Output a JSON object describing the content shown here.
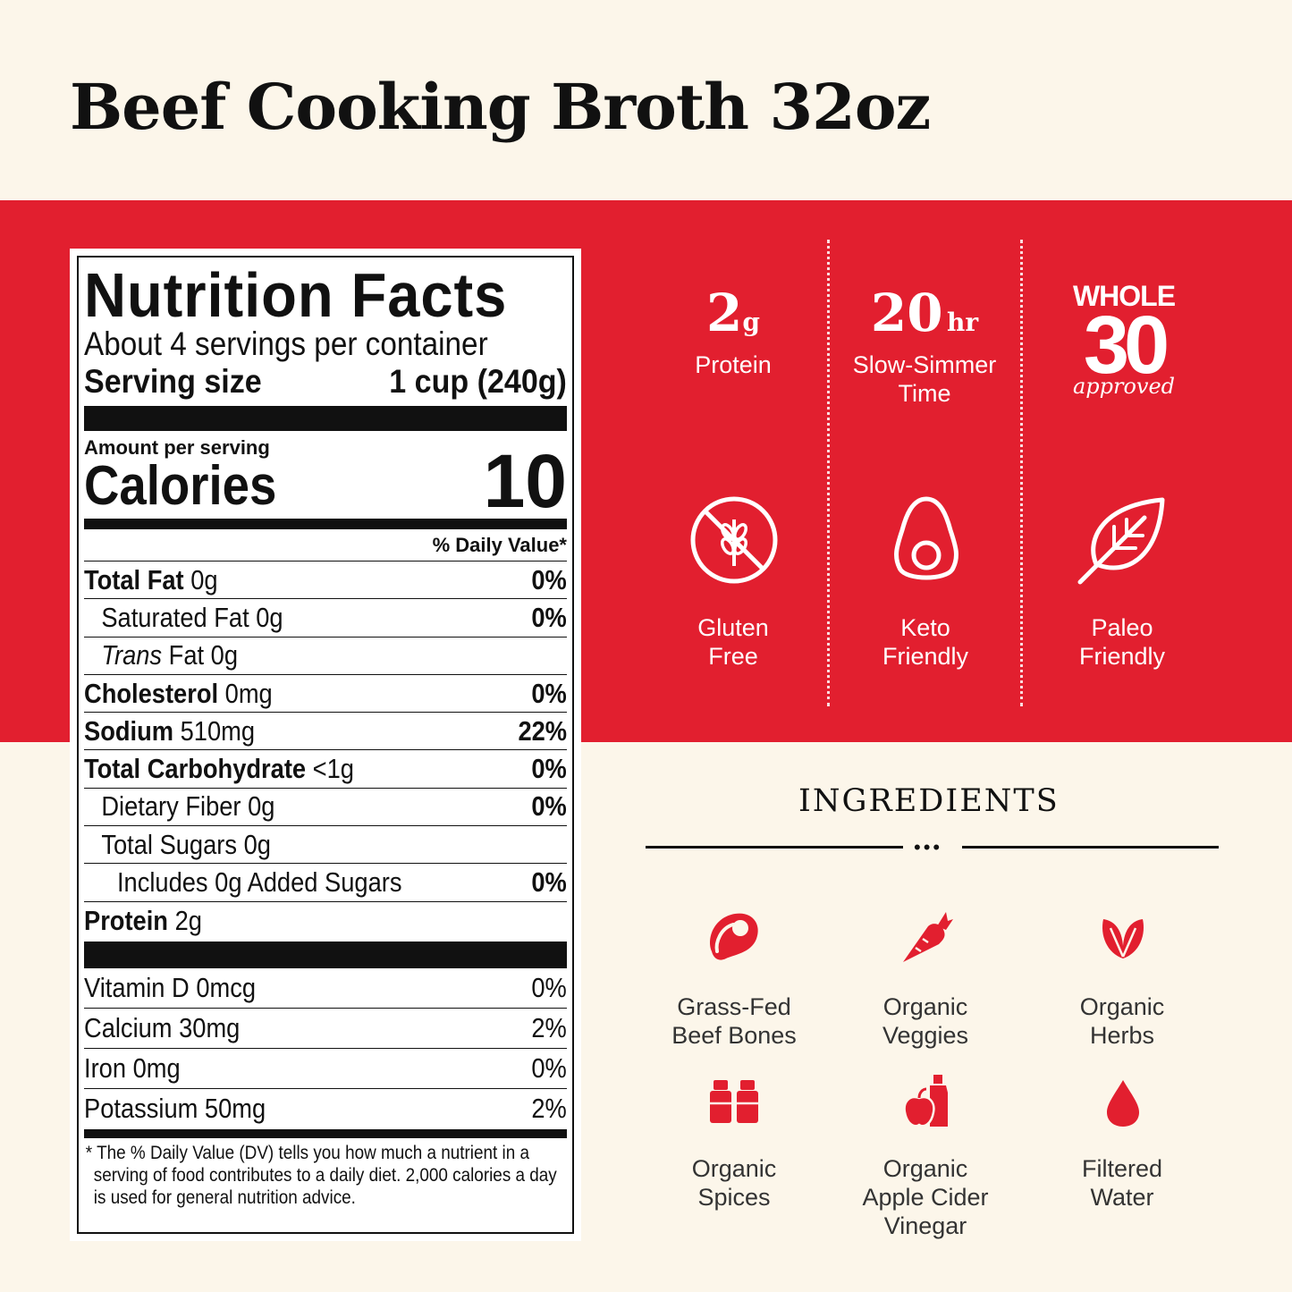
{
  "title": "Beef Cooking Broth 32oz",
  "colors": {
    "accent": "#e21f2f",
    "background": "#fcf6ea"
  },
  "nutrition": {
    "heading": "Nutrition Facts",
    "servings": "About 4 servings per container",
    "serving_size_label": "Serving size",
    "serving_size_value": "1 cup (240g)",
    "amount_per_serving": "Amount per serving",
    "calories_label": "Calories",
    "calories_value": "10",
    "dv_header": "% Daily Value*",
    "rows": [
      {
        "bold": "Total Fat",
        "amount": "0g",
        "pct": "0%"
      },
      {
        "bold": "",
        "amount": "Saturated Fat 0g",
        "pct": "0%"
      },
      {
        "italic": "Trans",
        "amount": " Fat 0g",
        "pct": ""
      },
      {
        "bold": "Cholesterol",
        "amount": "0mg",
        "pct": "0%"
      },
      {
        "bold": "Sodium",
        "amount": "510mg",
        "pct": "22%"
      },
      {
        "bold": "Total Carbohydrate",
        "amount": "<1g",
        "pct": "0%"
      },
      {
        "bold": "",
        "amount": "Dietary Fiber 0g",
        "pct": "0%"
      },
      {
        "bold": "",
        "amount": "Total Sugars 0g",
        "pct": ""
      },
      {
        "bold": "",
        "amount": "Includes 0g Added Sugars",
        "pct": "0%"
      },
      {
        "bold": "Protein",
        "amount": "2g",
        "pct": ""
      }
    ],
    "vitamins": [
      {
        "name": "Vitamin D 0mcg",
        "pct": "0%"
      },
      {
        "name": "Calcium 30mg",
        "pct": "2%"
      },
      {
        "name": "Iron 0mg",
        "pct": "0%"
      },
      {
        "name": "Potassium 50mg",
        "pct": "2%"
      }
    ],
    "footnote": "* The % Daily Value (DV) tells you how much a nutrient in a serving of food contributes to a daily diet. 2,000 calories a day is used for general nutrition advice."
  },
  "highlights": {
    "protein": {
      "value": "2",
      "unit": "g",
      "label": "Protein"
    },
    "simmer": {
      "value": "20",
      "unit": "hr",
      "label_line1": "Slow-Simmer",
      "label_line2": "Time"
    },
    "whole30": {
      "top": "WHOLE",
      "number": "30",
      "bottom": "approved",
      "icon": "whole30-logo"
    }
  },
  "diet": [
    {
      "icon": "gluten-free-icon",
      "line1": "Gluten",
      "line2": "Free"
    },
    {
      "icon": "avocado-icon",
      "line1": "Keto",
      "line2": "Friendly"
    },
    {
      "icon": "leaf-icon",
      "line1": "Paleo",
      "line2": "Friendly"
    }
  ],
  "ingredients": {
    "heading": "INGREDIENTS",
    "dots": "•••",
    "items": [
      {
        "icon": "steak-icon",
        "line1": "Grass-Fed",
        "line2": "Beef Bones",
        "line3": ""
      },
      {
        "icon": "carrot-icon",
        "line1": "Organic",
        "line2": "Veggies",
        "line3": ""
      },
      {
        "icon": "herb-icon",
        "line1": "Organic",
        "line2": "Herbs",
        "line3": ""
      },
      {
        "icon": "spice-shakers-icon",
        "line1": "Organic",
        "line2": "Spices",
        "line3": ""
      },
      {
        "icon": "apple-bottle-icon",
        "line1": "Organic",
        "line2": "Apple Cider",
        "line3": "Vinegar"
      },
      {
        "icon": "water-drop-icon",
        "line1": "Filtered",
        "line2": "Water",
        "line3": ""
      }
    ]
  }
}
